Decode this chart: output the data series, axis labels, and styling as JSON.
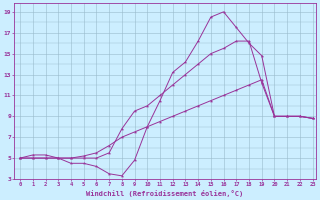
{
  "xlabel": "Windchill (Refroidissement éolien,°C)",
  "xlim": [
    -0.5,
    23.3
  ],
  "ylim": [
    3,
    19.8
  ],
  "xticks": [
    0,
    1,
    2,
    3,
    4,
    5,
    6,
    7,
    8,
    9,
    10,
    11,
    12,
    13,
    14,
    15,
    16,
    17,
    18,
    19,
    20,
    21,
    22,
    23
  ],
  "yticks": [
    3,
    5,
    7,
    9,
    11,
    13,
    15,
    17,
    19
  ],
  "bg_color": "#cceeff",
  "line_color": "#993399",
  "grid_color": "#99bbcc",
  "line1_x": [
    0,
    1,
    2,
    3,
    4,
    5,
    6,
    7,
    8,
    9,
    10,
    11,
    12,
    13,
    14,
    15,
    16,
    17,
    18,
    19,
    20,
    21,
    22,
    23
  ],
  "line1_y": [
    5,
    5.3,
    5.3,
    5,
    4.5,
    4.5,
    4.2,
    3.5,
    3.3,
    4.8,
    8,
    10.5,
    13.2,
    14.2,
    16.2,
    18.5,
    19,
    17.5,
    16,
    14.8,
    9,
    9,
    9,
    8.8
  ],
  "line2_x": [
    0,
    1,
    2,
    3,
    4,
    5,
    6,
    7,
    8,
    9,
    10,
    11,
    12,
    13,
    14,
    15,
    16,
    17,
    18,
    19,
    20,
    21,
    22,
    23
  ],
  "line2_y": [
    5,
    5,
    5,
    5,
    5,
    5,
    5,
    5.5,
    7.8,
    9.5,
    10,
    11,
    12,
    13,
    14,
    15,
    15.5,
    16.2,
    16.2,
    12.2,
    9,
    9,
    9,
    8.8
  ],
  "line3_x": [
    0,
    1,
    2,
    3,
    4,
    5,
    6,
    7,
    8,
    9,
    10,
    11,
    12,
    13,
    14,
    15,
    16,
    17,
    18,
    19,
    20,
    21,
    22,
    23
  ],
  "line3_y": [
    5,
    5,
    5,
    5,
    5,
    5.2,
    5.5,
    6.2,
    7,
    7.5,
    8,
    8.5,
    9,
    9.5,
    10,
    10.5,
    11,
    11.5,
    12,
    12.5,
    9,
    9,
    9,
    8.8
  ]
}
